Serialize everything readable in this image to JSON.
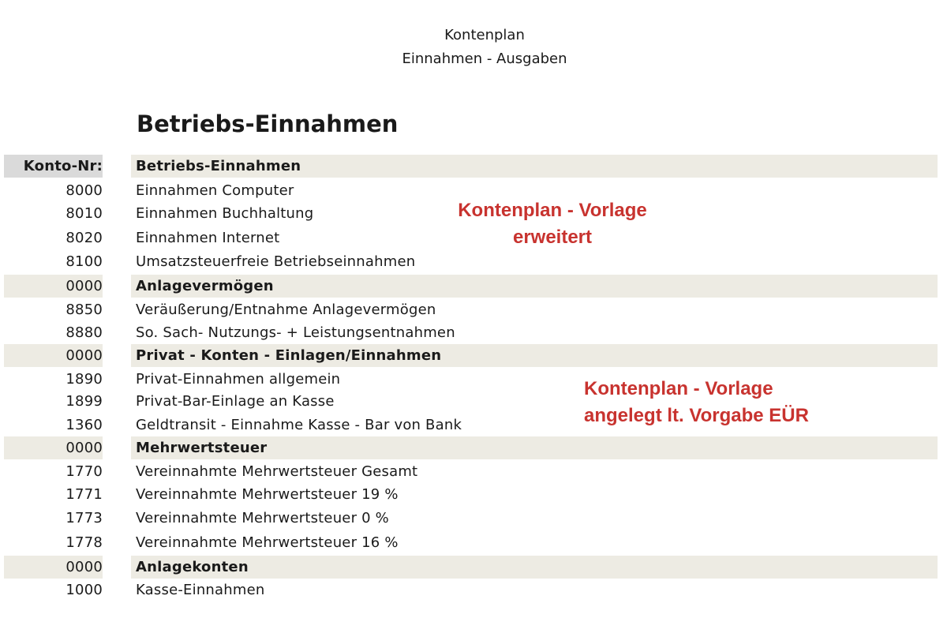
{
  "header": {
    "line1": "Kontenplan",
    "line2": "Einnahmen - Ausgaben"
  },
  "section_title": "Betriebs-Einnahmen",
  "table": {
    "header": {
      "nr": "Konto-Nr:",
      "name": "Betriebs-Einnahmen"
    },
    "rows": [
      {
        "nr": "8000",
        "name": "Einnahmen Computer"
      },
      {
        "nr": "8010",
        "name": "Einnahmen Buchhaltung"
      },
      {
        "nr": "8020",
        "name": "Einnahmen Internet"
      },
      {
        "nr": "8100",
        "name": "Umsatzsteuerfreie Betriebseinnahmen"
      },
      {
        "nr": "0000",
        "name": "Anlagevermögen"
      },
      {
        "nr": "8850",
        "name": "Veräußerung/Entnahme Anlagevermögen"
      },
      {
        "nr": "8880",
        "name": "So. Sach- Nutzungs- + Leistungsentnahmen"
      },
      {
        "nr": "0000",
        "name": "Privat - Konten - Einlagen/Einnahmen"
      },
      {
        "nr": "1890",
        "name": "Privat-Einnahmen allgemein"
      },
      {
        "nr": "1899",
        "name": "Privat-Bar-Einlage an Kasse"
      },
      {
        "nr": "1360",
        "name": "Geldtransit - Einnahme Kasse - Bar von Bank"
      },
      {
        "nr": "0000",
        "name": "Mehrwertsteuer"
      },
      {
        "nr": "1770",
        "name": "Vereinnahmte Mehrwertsteuer Gesamt"
      },
      {
        "nr": "1771",
        "name": "Vereinnahmte Mehrwertsteuer  19 %"
      },
      {
        "nr": "1773",
        "name": "Vereinnahmte Mehrwertsteuer  0 %"
      },
      {
        "nr": "1778",
        "name": "Vereinnahmte Mehrwertsteuer  16 %"
      },
      {
        "nr": "0000",
        "name": "Anlagekonten"
      },
      {
        "nr": "1000",
        "name": "Kasse-Einnahmen"
      }
    ]
  },
  "notes": {
    "note1_line1": "Kontenplan - Vorlage",
    "note1_line2": "erweitert",
    "note2_line1": "Kontenplan - Vorlage",
    "note2_line2": "angelegt lt. Vorgabe EÜR"
  },
  "colors": {
    "annotation": "#c8332f",
    "group_row_bg": "#edebe3",
    "header_nr_bg": "#dadada"
  }
}
